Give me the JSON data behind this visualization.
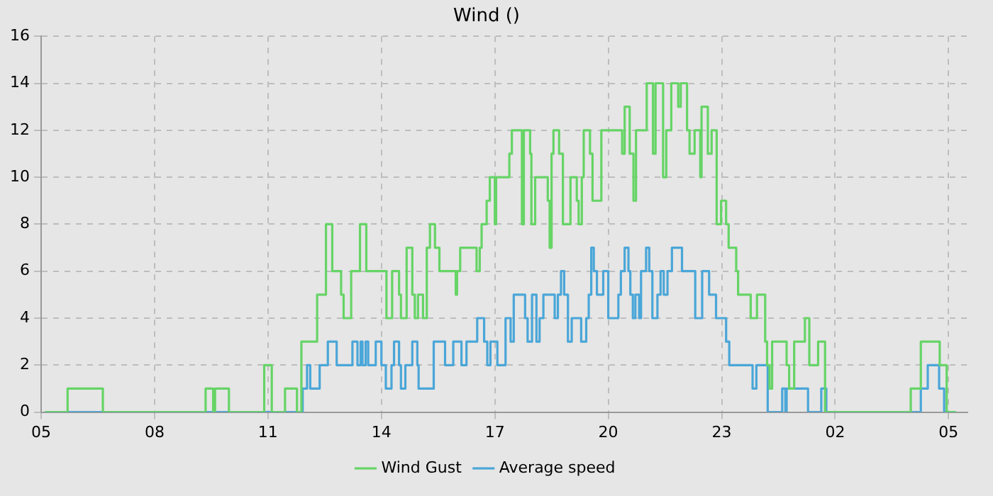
{
  "chart_data": {
    "type": "step",
    "title": "Wind ()",
    "xlim": [
      "--01-01T05:00",
      "--01-02T05:30"
    ],
    "ylim": [
      0,
      16
    ],
    "xticks": [
      {
        "value": "--01-01T05:00",
        "label": "05"
      },
      {
        "value": "--01-01T08:00",
        "label": "08"
      },
      {
        "value": "--01-01T11:00",
        "label": "11"
      },
      {
        "value": "--01-01T14:00",
        "label": "14"
      },
      {
        "value": "--01-01T17:00",
        "label": "17"
      },
      {
        "value": "--01-01T20:00",
        "label": "20"
      },
      {
        "value": "--01-01T23:00",
        "label": "23"
      },
      {
        "value": "--01-02T02:00",
        "label": "02"
      },
      {
        "value": "--01-02T05:00",
        "label": "05"
      }
    ],
    "yticks": [
      0,
      2,
      4,
      6,
      8,
      10,
      12,
      14,
      16
    ],
    "grid": true,
    "legend": "bottom",
    "marker": "none",
    "line_style": "solid",
    "series": [
      {
        "name": "Wind Gust",
        "color": "#66d466",
        "x": [
          "--01-01T05:06",
          "--01-01T05:42",
          "--01-01T06:38",
          "--01-01T09:21",
          "--01-01T09:33",
          "--01-01T09:36",
          "--01-01T09:58",
          "--01-01T10:54",
          "--01-01T11:06",
          "--01-01T11:27",
          "--01-01T11:46",
          "--01-01T11:53",
          "--01-01T12:18",
          "--01-01T12:32",
          "--01-01T12:42",
          "--01-01T12:56",
          "--01-01T13:00",
          "--01-01T13:12",
          "--01-01T13:26",
          "--01-01T13:36",
          "--01-01T14:08",
          "--01-01T14:17",
          "--01-01T14:28",
          "--01-01T14:31",
          "--01-01T14:40",
          "--01-01T14:49",
          "--01-01T14:53",
          "--01-01T14:58",
          "--01-01T15:06",
          "--01-01T15:12",
          "--01-01T15:17",
          "--01-01T15:25",
          "--01-01T15:32",
          "--01-01T15:58",
          "--01-01T16:00",
          "--01-01T16:05",
          "--01-01T16:31",
          "--01-01T16:36",
          "--01-01T16:39",
          "--01-01T16:47",
          "--01-01T16:52",
          "--01-01T17:00",
          "--01-01T17:02",
          "--01-01T17:23",
          "--01-01T17:27",
          "--01-01T17:43",
          "--01-01T17:46",
          "--01-01T17:56",
          "--01-01T17:58",
          "--01-01T18:04",
          "--01-01T18:24",
          "--01-01T18:27",
          "--01-01T18:30",
          "--01-01T18:33",
          "--01-01T18:42",
          "--01-01T18:48",
          "--01-01T19:00",
          "--01-01T19:10",
          "--01-01T19:13",
          "--01-01T19:18",
          "--01-01T19:21",
          "--01-01T19:31",
          "--01-01T19:35",
          "--01-01T19:49",
          "--01-01T20:22",
          "--01-01T20:26",
          "--01-01T20:34",
          "--01-01T20:40",
          "--01-01T20:44",
          "--01-01T21:01",
          "--01-01T21:11",
          "--01-01T21:15",
          "--01-01T21:27",
          "--01-01T21:32",
          "--01-01T21:40",
          "--01-01T21:51",
          "--01-01T21:55",
          "--01-01T22:05",
          "--01-01T22:09",
          "--01-01T22:17",
          "--01-01T22:26",
          "--01-01T22:28",
          "--01-01T22:38",
          "--01-01T22:44",
          "--01-01T22:52",
          "--01-01T22:59",
          "--01-01T23:07",
          "--01-01T23:11",
          "--01-01T23:23",
          "--01-01T23:26",
          "--01-01T23:46",
          "--01-01T23:56",
          "--01-02T00:09",
          "--01-02T00:12",
          "--01-02T00:16",
          "--01-02T00:20",
          "--01-02T00:43",
          "--01-02T00:47",
          "--01-02T00:55",
          "--01-02T01:12",
          "--01-02T01:19",
          "--01-02T01:33",
          "--01-02T01:44",
          "--01-02T04:00",
          "--01-02T04:16",
          "--01-02T04:46",
          "--01-02T04:57",
          "--01-02T05:12"
        ],
        "values": [
          0,
          1,
          0,
          1,
          0,
          1,
          0,
          2,
          0,
          1,
          0,
          3,
          5,
          8,
          6,
          5,
          4,
          6,
          8,
          6,
          4,
          6,
          5,
          4,
          7,
          5,
          4,
          5,
          4,
          7,
          8,
          7,
          6,
          5,
          6,
          7,
          6,
          7,
          8,
          9,
          10,
          8,
          10,
          11,
          12,
          8,
          12,
          11,
          8,
          10,
          9,
          7,
          11,
          12,
          11,
          8,
          10,
          9,
          8,
          10,
          12,
          11,
          9,
          12,
          11,
          13,
          11,
          9,
          12,
          14,
          11,
          14,
          10,
          12,
          14,
          13,
          14,
          12,
          11,
          12,
          10,
          13,
          11,
          12,
          8,
          9,
          8,
          7,
          6,
          5,
          4,
          5,
          3,
          2,
          1,
          3,
          2,
          1,
          3,
          4,
          2,
          3,
          0,
          1,
          3,
          2,
          0,
          0
        ]
      },
      {
        "name": "Average speed",
        "color": "#4aa6d8",
        "x": [
          "--01-01T05:06",
          "--01-01T11:55",
          "--01-01T12:02",
          "--01-01T12:07",
          "--01-01T12:22",
          "--01-01T12:35",
          "--01-01T12:49",
          "--01-01T13:14",
          "--01-01T13:22",
          "--01-01T13:27",
          "--01-01T13:30",
          "--01-01T13:35",
          "--01-01T13:39",
          "--01-01T13:51",
          "--01-01T14:00",
          "--01-01T14:07",
          "--01-01T14:16",
          "--01-01T14:20",
          "--01-01T14:28",
          "--01-01T14:31",
          "--01-01T14:38",
          "--01-01T14:49",
          "--01-01T14:57",
          "--01-01T14:59",
          "--01-01T15:23",
          "--01-01T15:41",
          "--01-01T15:54",
          "--01-01T16:07",
          "--01-01T16:15",
          "--01-01T16:32",
          "--01-01T16:43",
          "--01-01T16:48",
          "--01-01T16:53",
          "--01-01T17:04",
          "--01-01T17:17",
          "--01-01T17:25",
          "--01-01T17:30",
          "--01-01T17:48",
          "--01-01T17:52",
          "--01-01T17:59",
          "--01-01T18:06",
          "--01-01T18:11",
          "--01-01T18:17",
          "--01-01T18:35",
          "--01-01T18:40",
          "--01-01T18:45",
          "--01-01T18:50",
          "--01-01T18:56",
          "--01-01T19:02",
          "--01-01T19:17",
          "--01-01T19:25",
          "--01-01T19:29",
          "--01-01T19:33",
          "--01-01T19:37",
          "--01-01T19:42",
          "--01-01T19:52",
          "--01-01T20:00",
          "--01-01T20:08",
          "--01-01T20:16",
          "--01-01T20:20",
          "--01-01T20:26",
          "--01-01T20:32",
          "--01-01T20:35",
          "--01-01T20:39",
          "--01-01T20:43",
          "--01-01T20:49",
          "--01-01T20:52",
          "--01-01T21:00",
          "--01-01T21:05",
          "--01-01T21:10",
          "--01-01T21:18",
          "--01-01T21:23",
          "--01-01T21:28",
          "--01-01T21:34",
          "--01-01T21:41",
          "--01-01T21:57",
          "--01-01T22:18",
          "--01-01T22:29",
          "--01-01T22:40",
          "--01-01T22:51",
          "--01-01T23:07",
          "--01-01T23:12",
          "--01-01T23:49",
          "--01-01T23:55",
          "--01-02T00:13",
          "--01-02T00:36",
          "--01-02T00:41",
          "--01-02T00:43",
          "--01-02T00:57",
          "--01-02T01:17",
          "--01-02T01:38",
          "--01-02T01:46",
          "--01-02T04:16",
          "--01-02T04:27",
          "--01-02T04:45",
          "--01-02T04:53",
          "--01-02T05:12"
        ],
        "values": [
          0,
          1,
          2,
          1,
          2,
          3,
          2,
          3,
          2,
          3,
          2,
          3,
          2,
          3,
          2,
          1,
          2,
          3,
          2,
          1,
          2,
          3,
          2,
          1,
          3,
          2,
          3,
          2,
          3,
          4,
          3,
          2,
          3,
          2,
          4,
          3,
          5,
          4,
          3,
          5,
          3,
          4,
          5,
          4,
          5,
          6,
          5,
          3,
          4,
          3,
          4,
          5,
          7,
          6,
          5,
          6,
          4,
          4,
          5,
          6,
          7,
          6,
          5,
          4,
          5,
          4,
          6,
          7,
          6,
          4,
          5,
          6,
          5,
          6,
          7,
          6,
          4,
          6,
          5,
          4,
          3,
          2,
          1,
          2,
          0,
          1,
          0,
          1,
          1,
          0,
          1,
          0,
          1,
          2,
          1,
          0,
          0
        ]
      }
    ]
  }
}
